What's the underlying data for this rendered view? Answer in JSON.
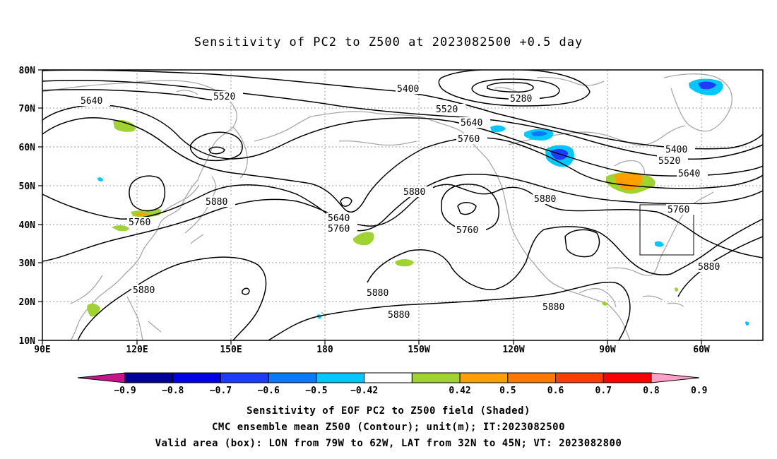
{
  "title": "Sensitivity of PC2 to Z500 at 2023082500 +0.5 day",
  "map": {
    "lon_labels": [
      "90E",
      "120E",
      "150E",
      "180",
      "150W",
      "120W",
      "90W",
      "60W"
    ],
    "lat_labels": [
      "80N",
      "70N",
      "60N",
      "50N",
      "40N",
      "30N",
      "20N",
      "10N"
    ],
    "contour_labels": [
      "5640",
      "5520",
      "5400",
      "5520",
      "5280",
      "5640",
      "5760",
      "5400",
      "5520",
      "5640",
      "5880",
      "5880",
      "5640",
      "5760",
      "5760",
      "5760",
      "5880",
      "5760",
      "5880",
      "5880",
      "5880",
      "5880",
      "5880"
    ],
    "valid_box": {
      "lon_from": "79W",
      "lon_to": "62W",
      "lat_from": "32N",
      "lat_to": "45N"
    }
  },
  "colorbar": {
    "tick_labels": [
      "−0.9",
      "−0.8",
      "−0.7",
      "−0.6",
      "−0.5",
      "−0.42",
      "0.42",
      "0.5",
      "0.6",
      "0.7",
      "0.8",
      "0.9"
    ],
    "colors": [
      "#c8148c",
      "#000096",
      "#0000e6",
      "#1e3cff",
      "#0a78ff",
      "#00c8ff",
      "#ffffff",
      "#a0d232",
      "#ffa000",
      "#ff7800",
      "#ff3c00",
      "#ff0000",
      "#ffa0c8"
    ]
  },
  "captions": {
    "line1": "Sensitivity of EOF PC2 to Z500 field (Shaded)",
    "line2": "CMC ensemble mean Z500 (Contour); unit(m); IT:2023082500",
    "line3": "Valid area (box): LON from 79W to 62W, LAT from 32N to 45N; VT: 2023082800"
  }
}
